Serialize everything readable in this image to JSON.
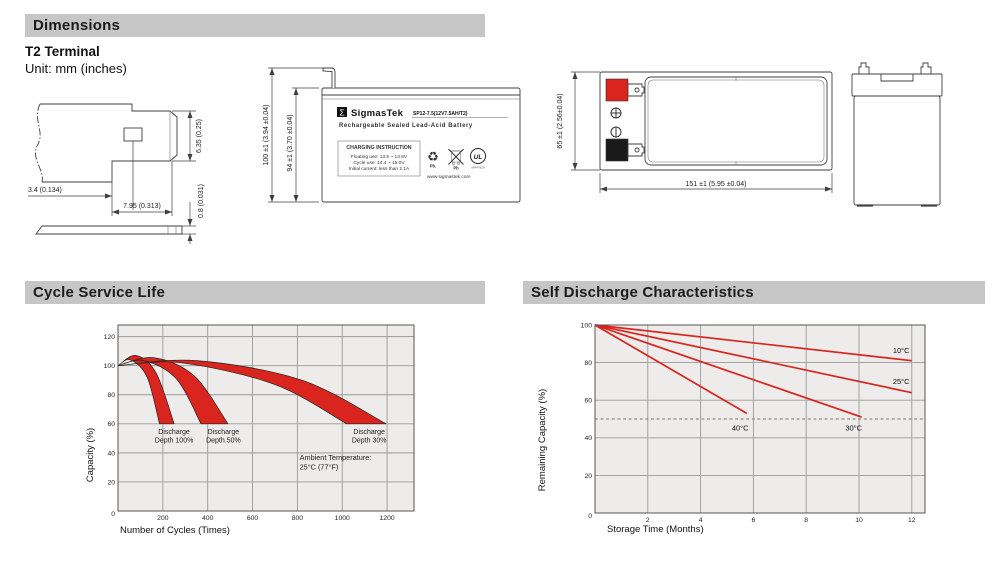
{
  "page": {
    "dimensions_title": "Dimensions",
    "terminal_type": "T2 Terminal",
    "unit_note": "Unit: mm (inches)",
    "cycle_title": "Cycle Service Life",
    "self_discharge_title": "Self Discharge Characteristics"
  },
  "terminal_drawing": {
    "dim_offset": "3.4 (0.134)",
    "dim_width": "7.95 (0.313)",
    "dim_height": "6.35 (0.25)",
    "dim_thickness": "0.8 (0.031)"
  },
  "front_view": {
    "dim_total_height": "100 ±1 (3.94 ±0.04)",
    "dim_case_height": "94 ±1 (3.70 ±0.04)",
    "label": {
      "logo_letter": "Σ",
      "brand": "SigmasTek",
      "model": "SP12-7.5(12V7.5AH/T2)",
      "type": "Rechargeable Sealed Lead-Acid Battery",
      "charging_title": "CHARGING INSTRUCTION",
      "charging_line1": "Floating use: 13.5 ~ 13.8V",
      "charging_line2": "Cycle use: 14.4 ~ 15.0V",
      "charging_line3": "Initial current: less than 2.1A",
      "recycle_pb": "Pb.",
      "bin_pb": "Pb",
      "ul_text": "UL",
      "ul_file": "MH47929",
      "website": "www.sigmastek.com"
    }
  },
  "top_view": {
    "dim_height": "65 ±1 (2.56±0.04)",
    "dim_width": "151 ±1 (5.95 ±0.04)"
  },
  "icons": {
    "recycle": "♻"
  },
  "colors": {
    "accent_red": "#d9251d",
    "header_bar": "#c6c6c6",
    "plot_bg": "#edecea",
    "grid": "#9a9a9a"
  },
  "chart_data": [
    {
      "type": "area",
      "title": "Cycle Service Life",
      "xlabel": "Number of Cycles (Times)",
      "ylabel": "Capacity (%)",
      "xlim": [
        0,
        1320
      ],
      "ylim": [
        0,
        128
      ],
      "xticks": [
        200,
        400,
        600,
        800,
        1000,
        1200
      ],
      "yticks": [
        0,
        20,
        40,
        60,
        80,
        100,
        120
      ],
      "grid": true,
      "legend": "none",
      "band_color": "#d9251d",
      "bands": [
        {
          "label": [
            "Discharge",
            "Depth 100%"
          ],
          "label_pos": [
            250,
            55
          ],
          "upper": [
            [
              0,
              100
            ],
            [
              80,
              107
            ],
            [
              170,
              95
            ],
            [
              250,
              60
            ]
          ],
          "lower": [
            [
              0,
              100
            ],
            [
              55,
              104
            ],
            [
              130,
              92
            ],
            [
              185,
              60
            ]
          ]
        },
        {
          "label": [
            "Discharge",
            "Depth 50%"
          ],
          "label_pos": [
            470,
            55
          ],
          "upper": [
            [
              0,
              100
            ],
            [
              160,
              105.5
            ],
            [
              340,
              93
            ],
            [
              490,
              60
            ]
          ],
          "lower": [
            [
              0,
              100
            ],
            [
              115,
              103.5
            ],
            [
              260,
              91
            ],
            [
              370,
              60
            ]
          ]
        },
        {
          "label": [
            "Discharge",
            "Depth 30%"
          ],
          "label_pos": [
            1120,
            55
          ],
          "upper": [
            [
              0,
              100
            ],
            [
              350,
              103.5
            ],
            [
              820,
              90
            ],
            [
              1195,
              60
            ]
          ],
          "lower": [
            [
              0,
              100
            ],
            [
              280,
              102
            ],
            [
              700,
              87
            ],
            [
              1020,
              60
            ]
          ]
        }
      ],
      "annotation": {
        "lines": [
          "Ambient Temperature:",
          "25°C (77°F)"
        ],
        "pos": [
          810,
          35
        ]
      }
    },
    {
      "type": "line",
      "title": "Self Discharge Characteristics",
      "xlabel": "Storage Time (Months)",
      "ylabel": "Remaining Capacity (%)",
      "xlim": [
        0,
        12.5
      ],
      "ylim": [
        0,
        100
      ],
      "xticks": [
        2,
        4,
        6,
        8,
        10,
        12
      ],
      "yticks": [
        0,
        20,
        40,
        60,
        80,
        100
      ],
      "grid": true,
      "legend": "inline-labels",
      "line_color": "#d9251d",
      "dashed_line_y": 50,
      "series": [
        {
          "name": "10°C",
          "points": [
            [
              0,
              100
            ],
            [
              12,
              81
            ]
          ],
          "label_pos": [
            11.6,
            85
          ]
        },
        {
          "name": "25°C",
          "points": [
            [
              0,
              100
            ],
            [
              12,
              64
            ]
          ],
          "label_pos": [
            11.6,
            68.5
          ]
        },
        {
          "name": "30°C",
          "points": [
            [
              0,
              100
            ],
            [
              10.1,
              51
            ]
          ],
          "label_pos": [
            9.8,
            44
          ]
        },
        {
          "name": "40°C",
          "points": [
            [
              0,
              100
            ],
            [
              5.75,
              53
            ]
          ],
          "label_pos": [
            5.5,
            44
          ]
        }
      ]
    }
  ]
}
